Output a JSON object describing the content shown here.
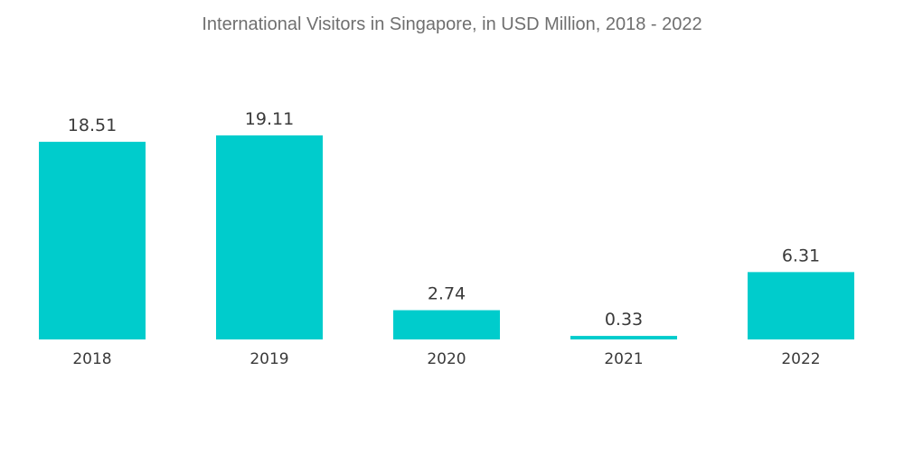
{
  "chart_data": {
    "type": "bar",
    "title": "International Visitors in Singapore, in USD Million, 2018 - 2022",
    "categories": [
      "2018",
      "2019",
      "2020",
      "2021",
      "2022"
    ],
    "values": [
      18.51,
      19.11,
      2.74,
      0.33,
      6.31
    ],
    "data_labels": [
      "18.51",
      "19.11",
      "2.74",
      "0.33",
      "6.31"
    ],
    "xlabel": "",
    "ylabel": "",
    "ylim": [
      0,
      19.11
    ],
    "grid": false,
    "legend": "none",
    "bar_color": "#00CCCC"
  }
}
